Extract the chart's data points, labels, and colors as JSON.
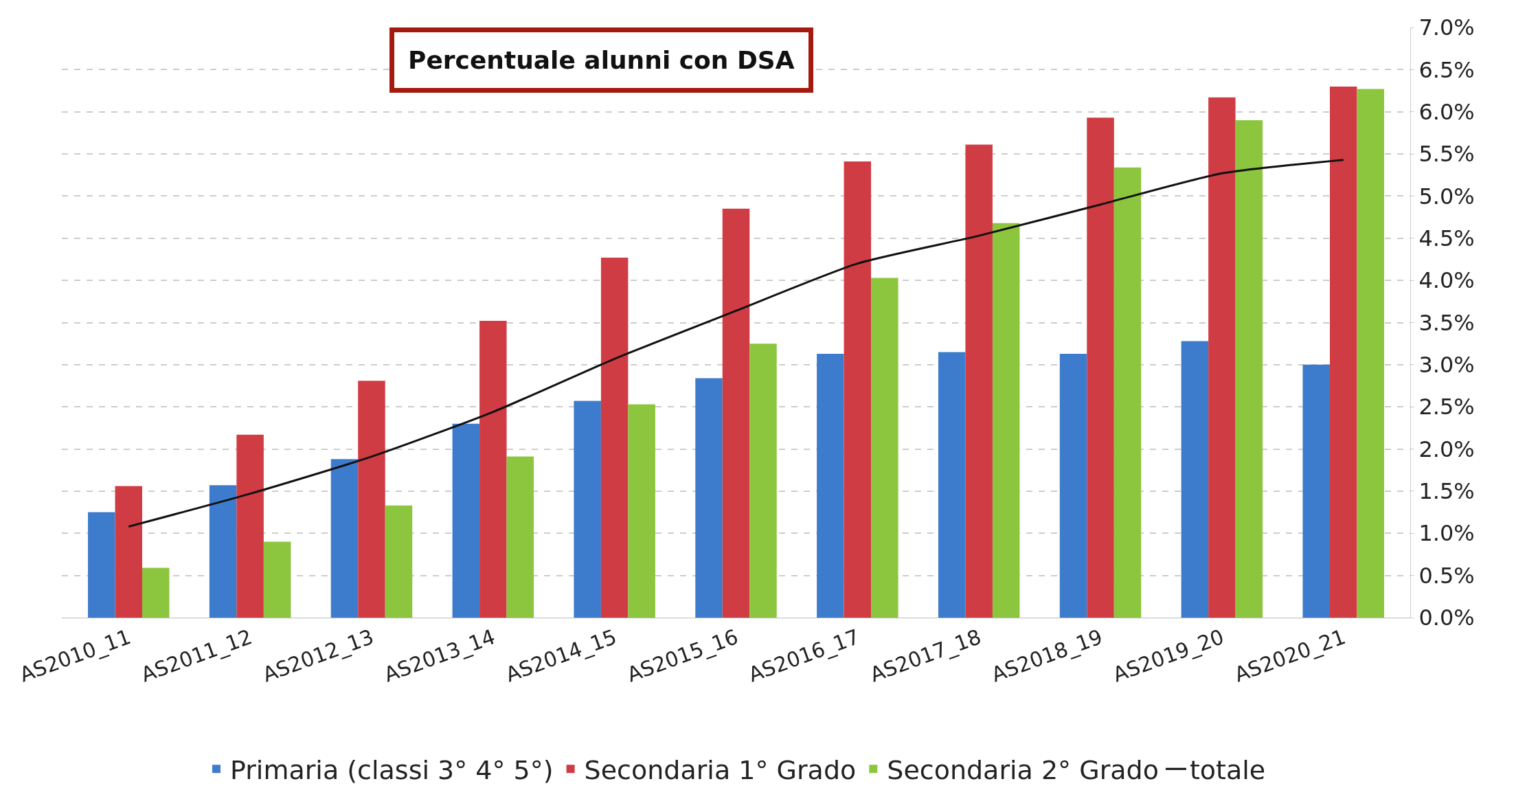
{
  "chart_data": {
    "type": "bar",
    "title": "Percentuale alunni con DSA",
    "categories": [
      "AS2010_11",
      "AS2011_12",
      "AS2012_13",
      "AS2013_14",
      "AS2014_15",
      "AS2015_16",
      "AS2016_17",
      "AS2017_18",
      "AS2018_19",
      "AS2019_20",
      "AS2020_21"
    ],
    "series": [
      {
        "name": "Primaria (classi 3° 4° 5°)",
        "color": "#3d7ccc",
        "values": [
          1.25,
          1.57,
          1.88,
          2.3,
          2.57,
          2.84,
          3.13,
          3.15,
          3.13,
          3.28,
          3.0
        ]
      },
      {
        "name": "Secondaria 1° Grado",
        "color": "#d03c44",
        "values": [
          1.56,
          2.17,
          2.81,
          3.52,
          4.27,
          4.85,
          5.41,
          5.61,
          5.93,
          6.17,
          6.3
        ]
      },
      {
        "name": "Secondaria 2° Grado",
        "color": "#8cc63e",
        "values": [
          0.59,
          0.9,
          1.33,
          1.91,
          2.53,
          3.25,
          4.03,
          4.68,
          5.34,
          5.9,
          6.27
        ]
      },
      {
        "name": "totale",
        "type": "line",
        "color": "#111111",
        "values": [
          1.08,
          1.47,
          1.91,
          2.44,
          3.07,
          3.64,
          4.2,
          4.53,
          4.9,
          5.27,
          5.43
        ]
      }
    ],
    "ylim": [
      0,
      7
    ],
    "yticks": [
      {
        "value": 0,
        "label": "0.0%"
      },
      {
        "value": 0.5,
        "label": "0.5%"
      },
      {
        "value": 1,
        "label": "1.0%"
      },
      {
        "value": 1.5,
        "label": "1.5%"
      },
      {
        "value": 2,
        "label": "2.0%"
      },
      {
        "value": 2.5,
        "label": "2.5%"
      },
      {
        "value": 3,
        "label": "3.0%"
      },
      {
        "value": 3.5,
        "label": "3.5%"
      },
      {
        "value": 4,
        "label": "4.0%"
      },
      {
        "value": 4.5,
        "label": "4.5%"
      },
      {
        "value": 5,
        "label": "5.0%"
      },
      {
        "value": 5.5,
        "label": "5.5%"
      },
      {
        "value": 6,
        "label": "6.0%"
      },
      {
        "value": 6.5,
        "label": "6.5%"
      },
      {
        "value": 7,
        "label": "7.0%"
      }
    ],
    "grid": "y",
    "legend": "bottom",
    "marker": "none",
    "line_style": "solid"
  }
}
